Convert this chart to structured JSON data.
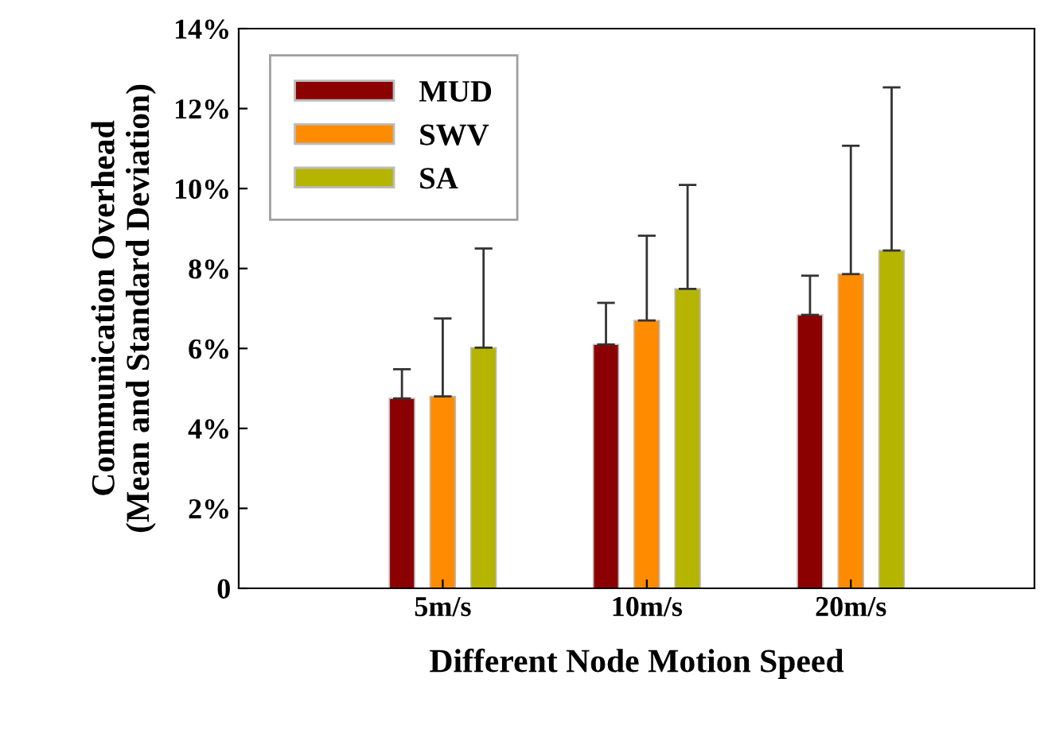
{
  "chart_data": {
    "type": "bar",
    "xlabel": "Different Node Motion Speed",
    "ylabel": "Communication Overhead\n(Mean and Standard Deviation)",
    "categories": [
      "5m/s",
      "10m/s",
      "20m/s"
    ],
    "series": [
      {
        "name": "MUD",
        "color": "#8b0000",
        "values": [
          4.75,
          6.1,
          6.84
        ],
        "errors": [
          [
            4.75,
            5.48
          ],
          [
            6.1,
            7.14
          ],
          [
            6.84,
            7.82
          ]
        ]
      },
      {
        "name": "SWV",
        "color": "#ff8c00",
        "values": [
          4.8,
          6.7,
          7.86
        ],
        "errors": [
          [
            4.8,
            6.75
          ],
          [
            6.7,
            8.82
          ],
          [
            7.86,
            11.07
          ]
        ]
      },
      {
        "name": "SA",
        "color": "#b5b500",
        "values": [
          6.02,
          7.49,
          8.45
        ],
        "errors": [
          [
            6.02,
            8.5
          ],
          [
            7.49,
            10.09
          ],
          [
            8.45,
            12.53
          ]
        ]
      }
    ],
    "ylim": [
      0,
      14
    ],
    "yticks": [
      0,
      {
        "value": 2,
        "label": "2%"
      },
      {
        "value": 4,
        "label": "4%"
      },
      {
        "value": 6,
        "label": "6%"
      },
      {
        "value": 8,
        "label": "8%"
      },
      {
        "value": 10,
        "label": "10%"
      },
      {
        "value": 12,
        "label": "12%"
      },
      {
        "value": 14,
        "label": "14%"
      }
    ],
    "grid": false,
    "legend": "top left"
  }
}
